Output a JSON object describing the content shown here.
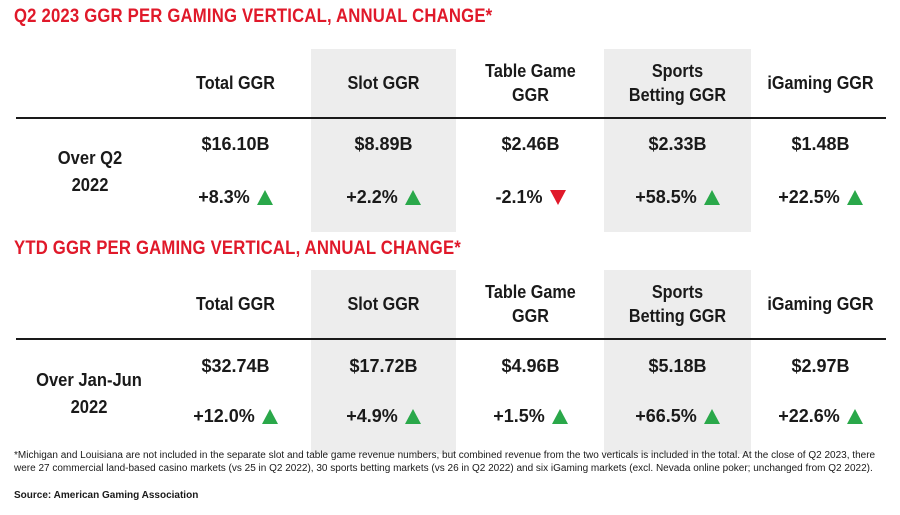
{
  "chart_data": [
    {
      "type": "table",
      "title": "Q2 2023 GGR PER GAMING VERTICAL, ANNUAL CHANGE*",
      "columns": [
        "Total GGR",
        "Slot GGR",
        "Table Game GGR",
        "Sports Betting GGR",
        "iGaming GGR"
      ],
      "row_label": "Over Q2 2022",
      "values": [
        "$16.10B",
        "$8.89B",
        "$2.46B",
        "$2.33B",
        "$1.48B"
      ],
      "values_billions": [
        16.1,
        8.89,
        2.46,
        2.33,
        1.48
      ],
      "changes": [
        "+8.3%",
        "+2.2%",
        "-2.1%",
        "+58.5%",
        "+22.5%"
      ],
      "change_pct": [
        8.3,
        2.2,
        -2.1,
        58.5,
        22.5
      ],
      "change_direction": [
        "up",
        "up",
        "down",
        "up",
        "up"
      ]
    },
    {
      "type": "table",
      "title": "YTD GGR PER GAMING VERTICAL, ANNUAL CHANGE*",
      "columns": [
        "Total GGR",
        "Slot GGR",
        "Table Game GGR",
        "Sports Betting GGR",
        "iGaming GGR"
      ],
      "row_label": "Over Jan-Jun 2022",
      "values": [
        "$32.74B",
        "$17.72B",
        "$4.96B",
        "$5.18B",
        "$2.97B"
      ],
      "values_billions": [
        32.74,
        17.72,
        4.96,
        5.18,
        2.97
      ],
      "changes": [
        "+12.0%",
        "+4.9%",
        "+1.5%",
        "+66.5%",
        "+22.6%"
      ],
      "change_pct": [
        12.0,
        4.9,
        1.5,
        66.5,
        22.6
      ],
      "change_direction": [
        "up",
        "up",
        "up",
        "up",
        "up"
      ]
    }
  ],
  "header_display": [
    "Total GGR",
    "Slot GGR",
    "Table Game\nGGR",
    "Sports\nBetting GGR",
    "iGaming GGR"
  ],
  "row_label_display": [
    "Over Q2\n2022",
    "Over Jan-Jun\n2022"
  ],
  "colors": {
    "title": "#e0192a",
    "up": "#2aa84a",
    "down": "#e0192a",
    "shade": "#ededed",
    "rule": "#1a1a1a"
  },
  "footnote": "*Michigan and Louisiana are not included in the separate slot and table game revenue numbers, but combined revenue from the two verticals is included in the total. At the close of Q2 2023, there were 27 commercial land-based casino markets (vs 25 in Q2 2022), 30 sports betting markets (vs 26 in Q2 2022) and six iGaming markets (excl. Nevada online poker; unchanged from Q2 2022).",
  "source": "Source: American Gaming Association"
}
